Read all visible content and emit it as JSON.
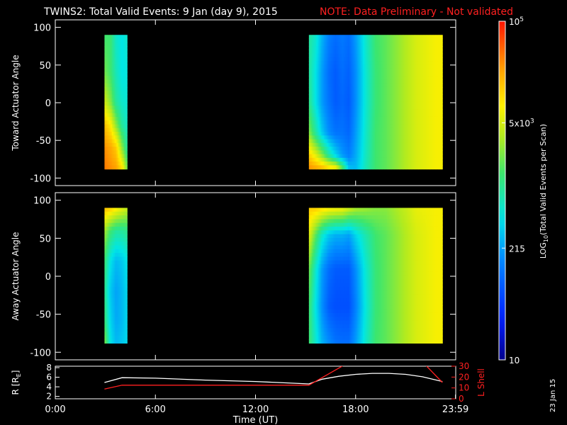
{
  "header": {
    "title": "TWINS2: Total Valid Events:  9 Jan (day   9), 2015",
    "note": "NOTE: Data Preliminary - Not validated",
    "note_color": "#ff2020"
  },
  "stamp": "23 Jan 15",
  "colors": {
    "background": "#000000",
    "axes": "#ffffff",
    "line_r": "#ffffff",
    "line_lshell": "#ff2020"
  },
  "chart_data": [
    {
      "type": "heatmap",
      "ylabel": "Toward Actuator Angle",
      "ylim": [
        -110,
        110
      ],
      "yticks": [
        100,
        50,
        0,
        -50,
        -100
      ],
      "xlim": [
        0,
        24
      ],
      "angle_range": [
        -88,
        90
      ],
      "segments": [
        {
          "start": 2.95,
          "end": 4.3,
          "times": [
            2.95,
            3.3,
            3.65,
            4.0,
            4.3
          ],
          "profiles": [
            {
              "a": 90,
              "v": [
                0.55,
                0.55,
                0.45,
                0.42,
                0.45
              ]
            },
            {
              "a": 40,
              "v": [
                0.6,
                0.55,
                0.47,
                0.42,
                0.43
              ]
            },
            {
              "a": 0,
              "v": [
                0.7,
                0.62,
                0.5,
                0.45,
                0.44
              ]
            },
            {
              "a": -30,
              "v": [
                0.82,
                0.76,
                0.62,
                0.5,
                0.46
              ]
            },
            {
              "a": -60,
              "v": [
                0.88,
                0.85,
                0.8,
                0.62,
                0.5
              ]
            },
            {
              "a": -88,
              "v": [
                0.9,
                0.88,
                0.86,
                0.78,
                0.6
              ]
            }
          ]
        },
        {
          "start": 15.2,
          "end": 23.2,
          "times": [
            15.2,
            15.6,
            16.0,
            16.4,
            16.8,
            17.2,
            17.6,
            18.0,
            18.6,
            19.2,
            19.8,
            20.4,
            21.0,
            21.6,
            22.2,
            22.8,
            23.2
          ],
          "profiles": [
            {
              "a": 90,
              "v": [
                0.5,
                0.45,
                0.35,
                0.28,
                0.25,
                0.27,
                0.25,
                0.32,
                0.45,
                0.55,
                0.58,
                0.62,
                0.66,
                0.7,
                0.72,
                0.74,
                0.74
              ]
            },
            {
              "a": 40,
              "v": [
                0.5,
                0.42,
                0.32,
                0.25,
                0.22,
                0.25,
                0.23,
                0.3,
                0.44,
                0.54,
                0.58,
                0.62,
                0.66,
                0.7,
                0.72,
                0.74,
                0.74
              ]
            },
            {
              "a": 0,
              "v": [
                0.52,
                0.42,
                0.32,
                0.26,
                0.22,
                0.24,
                0.22,
                0.3,
                0.44,
                0.54,
                0.58,
                0.62,
                0.66,
                0.7,
                0.72,
                0.74,
                0.74
              ]
            },
            {
              "a": -40,
              "v": [
                0.62,
                0.5,
                0.38,
                0.3,
                0.26,
                0.26,
                0.24,
                0.32,
                0.45,
                0.55,
                0.58,
                0.62,
                0.66,
                0.7,
                0.72,
                0.74,
                0.74
              ]
            },
            {
              "a": -70,
              "v": [
                0.8,
                0.72,
                0.62,
                0.5,
                0.4,
                0.32,
                0.28,
                0.34,
                0.46,
                0.55,
                0.58,
                0.62,
                0.66,
                0.7,
                0.72,
                0.74,
                0.74
              ]
            },
            {
              "a": -88,
              "v": [
                0.88,
                0.86,
                0.84,
                0.8,
                0.78,
                0.6,
                0.38,
                0.36,
                0.47,
                0.55,
                0.58,
                0.62,
                0.66,
                0.7,
                0.72,
                0.74,
                0.74
              ]
            }
          ]
        }
      ]
    },
    {
      "type": "heatmap",
      "ylabel": "Away Actuator Angle",
      "ylim": [
        -110,
        110
      ],
      "yticks": [
        100,
        50,
        0,
        -50,
        -100
      ],
      "xlim": [
        0,
        24
      ],
      "angle_range": [
        -88,
        90
      ],
      "segments": [
        {
          "start": 2.95,
          "end": 4.3,
          "times": [
            2.95,
            3.3,
            3.65,
            4.0,
            4.3
          ],
          "profiles": [
            {
              "a": 90,
              "v": [
                0.82,
                0.8,
                0.76,
                0.72,
                0.68
              ]
            },
            {
              "a": 60,
              "v": [
                0.65,
                0.55,
                0.5,
                0.5,
                0.52
              ]
            },
            {
              "a": 20,
              "v": [
                0.55,
                0.42,
                0.36,
                0.38,
                0.42
              ]
            },
            {
              "a": -20,
              "v": [
                0.52,
                0.38,
                0.33,
                0.36,
                0.4
              ]
            },
            {
              "a": -60,
              "v": [
                0.55,
                0.4,
                0.34,
                0.36,
                0.4
              ]
            },
            {
              "a": -88,
              "v": [
                0.62,
                0.42,
                0.36,
                0.38,
                0.4
              ]
            }
          ]
        },
        {
          "start": 15.2,
          "end": 23.2,
          "times": [
            15.2,
            15.6,
            16.0,
            16.4,
            16.8,
            17.2,
            17.6,
            18.0,
            18.6,
            19.2,
            19.8,
            20.4,
            21.0,
            21.6,
            22.2,
            22.8,
            23.2
          ],
          "profiles": [
            {
              "a": 90,
              "v": [
                0.8,
                0.8,
                0.78,
                0.76,
                0.75,
                0.74,
                0.7,
                0.66,
                0.64,
                0.62,
                0.62,
                0.65,
                0.68,
                0.72,
                0.73,
                0.74,
                0.74
              ]
            },
            {
              "a": 55,
              "v": [
                0.72,
                0.58,
                0.45,
                0.38,
                0.35,
                0.35,
                0.33,
                0.4,
                0.48,
                0.55,
                0.58,
                0.62,
                0.66,
                0.7,
                0.72,
                0.74,
                0.74
              ]
            },
            {
              "a": 10,
              "v": [
                0.6,
                0.45,
                0.32,
                0.25,
                0.22,
                0.22,
                0.22,
                0.3,
                0.44,
                0.54,
                0.58,
                0.62,
                0.66,
                0.7,
                0.72,
                0.74,
                0.74
              ]
            },
            {
              "a": -40,
              "v": [
                0.55,
                0.42,
                0.3,
                0.22,
                0.2,
                0.2,
                0.2,
                0.28,
                0.43,
                0.54,
                0.58,
                0.62,
                0.66,
                0.7,
                0.72,
                0.74,
                0.74
              ]
            },
            {
              "a": -88,
              "v": [
                0.55,
                0.45,
                0.35,
                0.3,
                0.26,
                0.25,
                0.25,
                0.32,
                0.45,
                0.55,
                0.58,
                0.62,
                0.66,
                0.7,
                0.72,
                0.74,
                0.74
              ]
            }
          ]
        }
      ]
    },
    {
      "type": "line",
      "ylabel": "R [R",
      "ylabel_sub": "E",
      "ylabel_end": "]",
      "ylim": [
        1.5,
        8.3
      ],
      "yticks": [
        8,
        6,
        4,
        2
      ],
      "y2label": "L Shell",
      "y2lim": [
        0,
        30
      ],
      "y2ticks": [
        30,
        20,
        10,
        0
      ],
      "xlabel": "Time (UT)",
      "xlim": [
        0,
        24
      ],
      "xticks": [
        {
          "t": 0,
          "label": "0:00"
        },
        {
          "t": 6,
          "label": "6:00"
        },
        {
          "t": 12,
          "label": "12:00"
        },
        {
          "t": 18,
          "label": "18:00"
        },
        {
          "t": 23.983,
          "label": "23:59"
        }
      ],
      "series": [
        {
          "axis": "left",
          "color": "#ffffff",
          "points": [
            [
              2.95,
              4.9
            ],
            [
              4.0,
              5.9
            ],
            [
              6,
              5.8
            ],
            [
              9,
              5.4
            ],
            [
              12,
              5.1
            ],
            [
              15.2,
              4.6
            ],
            [
              16,
              5.6
            ],
            [
              17,
              6.2
            ],
            [
              18,
              6.6
            ],
            [
              19,
              6.8
            ],
            [
              20,
              6.8
            ],
            [
              21,
              6.6
            ],
            [
              22,
              6.1
            ],
            [
              23.2,
              5.1
            ]
          ]
        },
        {
          "axis": "right",
          "color": "#ff2020",
          "segments": [
            [
              [
                2.95,
                9
              ],
              [
                4.0,
                12.5
              ],
              [
                12,
                12.5
              ],
              [
                15.2,
                12.5
              ],
              [
                17.3,
                31
              ]
            ],
            [
              [
                22.2,
                31
              ],
              [
                23.2,
                15
              ]
            ]
          ]
        }
      ]
    }
  ],
  "colorbar": {
    "label_pre": "LOG",
    "label_sub": "10",
    "label_post": "(Total Valid Events per Scan)",
    "ticks": [
      {
        "frac": 1.0,
        "base": "10",
        "sup": "5"
      },
      {
        "frac": 0.7,
        "base": "5x10",
        "sup": "3"
      },
      {
        "frac": 0.33,
        "base": "215",
        "sup": ""
      },
      {
        "frac": 0.0,
        "base": "10",
        "sup": ""
      }
    ]
  }
}
